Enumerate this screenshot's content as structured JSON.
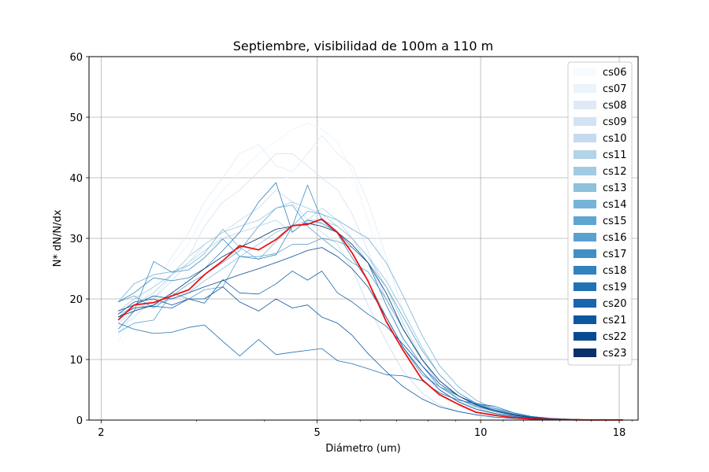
{
  "chart_data": {
    "type": "line",
    "title": "Septiembre, visibilidad de 100m a 110 m",
    "xlabel": "Diámetro (um)",
    "ylabel": "N* dN/N/dx",
    "x_scale": "log",
    "xlim": [
      1.9,
      19.5
    ],
    "ylim": [
      0,
      60
    ],
    "x_ticks": [
      2,
      5,
      10,
      18
    ],
    "y_ticks": [
      0,
      10,
      20,
      30,
      40,
      50,
      60
    ],
    "grid": true,
    "legend_position": "top-right",
    "x": [
      2.15,
      2.3,
      2.5,
      2.7,
      2.9,
      3.1,
      3.35,
      3.6,
      3.9,
      4.2,
      4.5,
      4.8,
      5.1,
      5.45,
      5.8,
      6.2,
      6.7,
      7.2,
      7.8,
      8.4,
      9.1,
      9.8,
      10.6,
      11.5,
      12.4,
      13.4,
      14.5,
      15.7,
      17.0,
      18.3
    ],
    "series": [
      {
        "name": "cs06",
        "color": "#f7fbff",
        "values": [
          11.5,
          16,
          19,
          22,
          23,
          27,
          31,
          33,
          37,
          38,
          41,
          44,
          46,
          43,
          39,
          34,
          26,
          18,
          10,
          6,
          3.5,
          2.0,
          1.0,
          0.5,
          0.3,
          0.15,
          0.08,
          0.04,
          0.02,
          0.01
        ]
      },
      {
        "name": "cs07",
        "color": "#ebf3fb",
        "values": [
          13,
          17,
          21,
          26,
          29,
          34,
          38,
          41,
          44,
          46,
          48,
          49,
          48,
          46,
          41,
          33,
          24,
          16,
          9,
          5,
          3.0,
          1.6,
          0.9,
          0.5,
          0.25,
          0.12,
          0.06,
          0.03,
          0.02,
          0.01
        ]
      },
      {
        "name": "cs08",
        "color": "#deebf7",
        "values": [
          14,
          18,
          22,
          27,
          31,
          36,
          40,
          44,
          45.5,
          42,
          41,
          44,
          47,
          44,
          42,
          36,
          27,
          18,
          10,
          6,
          3.2,
          1.8,
          1.0,
          0.5,
          0.25,
          0.12,
          0.06,
          0.03,
          0.02,
          0.01
        ]
      },
      {
        "name": "cs09",
        "color": "#d2e3f3",
        "values": [
          15,
          17,
          20,
          24,
          27,
          32,
          36,
          38,
          41,
          44,
          44,
          42,
          40,
          38,
          34,
          28,
          20,
          13,
          8,
          4.5,
          2.5,
          1.4,
          0.8,
          0.4,
          0.2,
          0.1,
          0.05,
          0.03,
          0.02,
          0.01
        ]
      },
      {
        "name": "cs10",
        "color": "#c6dbef",
        "values": [
          16,
          18,
          20,
          23,
          26,
          29,
          31,
          33,
          35,
          38,
          36,
          33,
          31,
          29,
          25,
          19,
          13,
          8,
          4.5,
          2.5,
          1.4,
          0.8,
          0.4,
          0.2,
          0.1,
          0.05,
          0.03,
          0.02,
          0.01,
          0.01
        ]
      },
      {
        "name": "cs11",
        "color": "#b3d3e8",
        "values": [
          17,
          19,
          21,
          24,
          26,
          28,
          30,
          31,
          32,
          33,
          31,
          33,
          35,
          33,
          30,
          26,
          20,
          15,
          10,
          6,
          3.5,
          2.0,
          1.1,
          0.6,
          0.3,
          0.15,
          0.08,
          0.04,
          0.02,
          0.01
        ]
      },
      {
        "name": "cs12",
        "color": "#a1cbe2",
        "values": [
          18,
          20,
          22,
          24,
          27,
          29,
          31,
          32,
          33,
          35,
          36,
          35,
          34,
          32,
          30,
          27,
          22,
          16,
          10,
          6,
          3.5,
          2.2,
          1.3,
          0.7,
          0.35,
          0.18,
          0.09,
          0.05,
          0.03,
          0.01
        ]
      },
      {
        "name": "cs13",
        "color": "#8dc1dd",
        "values": [
          17.5,
          18.5,
          19,
          20,
          21,
          23,
          25,
          27,
          29,
          31,
          32,
          33,
          33,
          32,
          30,
          27,
          23,
          18,
          12,
          7.5,
          4.5,
          2.7,
          1.5,
          0.8,
          0.4,
          0.2,
          0.1,
          0.05,
          0.03,
          0.01
        ]
      },
      {
        "name": "cs14",
        "color": "#75b4d8",
        "values": [
          19.5,
          22.5,
          24,
          24.5,
          25.5,
          27.5,
          31.5,
          28.5,
          26.5,
          29.5,
          32,
          34.5,
          34,
          33,
          31.5,
          30,
          26,
          20.5,
          14,
          9,
          5.5,
          3.3,
          1.9,
          1.0,
          0.5,
          0.25,
          0.12,
          0.06,
          0.03,
          0.01
        ]
      },
      {
        "name": "cs15",
        "color": "#5ea5d1",
        "values": [
          19.5,
          20.5,
          18.5,
          20.5,
          22.5,
          24,
          26,
          28,
          32,
          35,
          35.5,
          32,
          30,
          28,
          26,
          24.5,
          20,
          15,
          10,
          6.5,
          4,
          2.6,
          1.6,
          0.9,
          0.5,
          0.25,
          0.12,
          0.06,
          0.03,
          0.01
        ]
      },
      {
        "name": "cs16",
        "color": "#5aa1cf",
        "values": [
          14.5,
          16,
          16.5,
          21,
          20,
          21.5,
          22,
          27,
          27,
          27.5,
          29,
          29,
          30,
          29.5,
          28.5,
          26,
          22,
          17,
          11.5,
          7.5,
          4.5,
          2.8,
          1.7,
          1.0,
          0.5,
          0.25,
          0.12,
          0.06,
          0.03,
          0.01
        ]
      },
      {
        "name": "cs17",
        "color": "#4090c5",
        "values": [
          15,
          18,
          26.2,
          24.4,
          24.8,
          26.8,
          29.9,
          27,
          26.6,
          27.3,
          32,
          38.8,
          33,
          30.8,
          26.8,
          23,
          17,
          12,
          7.5,
          5.5,
          4,
          2.8,
          2.0,
          1.2,
          0.6,
          0.3,
          0.15,
          0.07,
          0.03,
          0.01
        ]
      },
      {
        "name": "cs18",
        "color": "#3282be",
        "values": [
          19.5,
          21,
          23.5,
          23,
          23.5,
          25,
          28,
          31,
          36,
          39.2,
          31,
          33,
          32.5,
          31,
          28.5,
          26,
          19,
          13.5,
          9,
          5.5,
          3.5,
          2.3,
          1.5,
          0.9,
          0.5,
          0.25,
          0.12,
          0.06,
          0.03,
          0.01
        ]
      },
      {
        "name": "cs19",
        "color": "#2171b5",
        "values": [
          16,
          15,
          14.3,
          14.5,
          15.3,
          15.7,
          13,
          10.6,
          13.3,
          10.8,
          11.2,
          11.5,
          11.8,
          9.8,
          9.3,
          8.5,
          7.5,
          7.3,
          6.5,
          4.5,
          3.3,
          2.7,
          2.3,
          1.2,
          0.6,
          0.3,
          0.15,
          0.07,
          0.03,
          0.01
        ]
      },
      {
        "name": "cs20",
        "color": "#1966ad",
        "values": [
          17,
          18.5,
          18.8,
          18.5,
          20,
          19.3,
          23.2,
          21,
          20.8,
          22.5,
          24.6,
          23.1,
          24.6,
          21,
          19.5,
          17.5,
          15.5,
          12.5,
          9,
          6,
          4,
          2.6,
          1.7,
          1.0,
          0.5,
          0.25,
          0.12,
          0.06,
          0.03,
          0.01
        ]
      },
      {
        "name": "cs21",
        "color": "#0d57a1",
        "values": [
          17.5,
          19.5,
          20,
          19,
          20,
          20,
          22,
          19.5,
          18,
          20,
          18.5,
          19,
          17,
          16,
          14,
          11,
          8,
          5.5,
          3.5,
          2.2,
          1.4,
          0.9,
          0.5,
          0.3,
          0.15,
          0.08,
          0.04,
          0.02,
          0.01,
          0.01
        ]
      },
      {
        "name": "cs22",
        "color": "#084a91",
        "values": [
          18,
          19,
          20.5,
          20,
          21,
          22,
          23,
          24,
          25,
          26,
          27,
          28,
          28.5,
          27,
          25,
          22,
          17,
          12,
          8,
          5,
          3,
          1.8,
          1.1,
          0.6,
          0.3,
          0.15,
          0.08,
          0.04,
          0.02,
          0.01
        ]
      },
      {
        "name": "cs23",
        "color": "#08306b",
        "values": [
          17,
          18,
          19,
          21,
          23,
          25,
          27,
          28.5,
          30,
          31.5,
          32,
          32.5,
          32,
          31,
          29,
          26,
          21,
          15,
          10,
          6.5,
          4,
          2.5,
          1.5,
          0.8,
          0.4,
          0.2,
          0.1,
          0.05,
          0.03,
          0.01
        ]
      }
    ],
    "mean_series": {
      "color": "#ee1111",
      "values": [
        16.5,
        19,
        19.4,
        20.5,
        21.5,
        24,
        26.3,
        28.8,
        28.1,
        29.8,
        32.1,
        32.3,
        33.2,
        31,
        27.6,
        23,
        16.3,
        11.5,
        6.7,
        4.2,
        2.6,
        1.3,
        0.8,
        0.4,
        0.2,
        0.1,
        0.05,
        0.03,
        0.02,
        0.01
      ]
    }
  }
}
